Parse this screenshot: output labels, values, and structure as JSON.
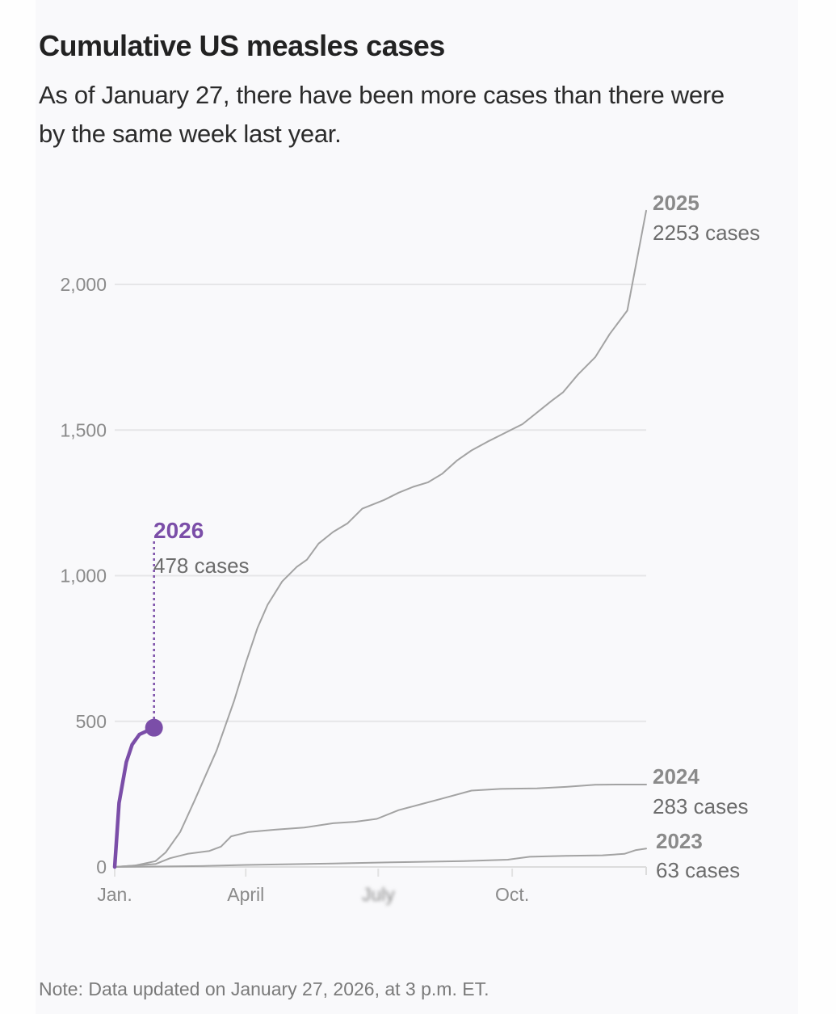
{
  "header": {
    "title": "Cumulative US measles cases",
    "subtitle": "As of January 27, there have been more cases than there were by the same week last year."
  },
  "footer": {
    "note": "Note: Data updated on January 27, 2026, at 3 p.m. ET."
  },
  "colors": {
    "highlight": "#7b4ea8",
    "series_gray": "#a3a3a3",
    "grid": "#e6e6e8",
    "axis": "#a8a8a8"
  },
  "chart_data": {
    "type": "line",
    "title": "Cumulative US measles cases",
    "subtitle": "As of January 27, there have been more cases than there were by the same week last year.",
    "xlabel": "",
    "ylabel": "",
    "ylim": [
      0,
      2253
    ],
    "yticks": [
      0,
      500,
      1000,
      1500,
      2000
    ],
    "ytick_labels": [
      "0",
      "500",
      "1,000",
      "1,500",
      "2,000"
    ],
    "xticks_labels": [
      "Jan.",
      "April",
      "July",
      "Oct."
    ],
    "xticks_dayofyear": [
      0,
      90,
      181,
      273
    ],
    "grid": true,
    "legend": "direct labels at line ends",
    "x_unit": "day of year",
    "series": [
      {
        "name": "2025",
        "label_year": "2025",
        "label_cases": "2253 cases",
        "final_value": 2253,
        "highlight": false,
        "points": [
          [
            0,
            0
          ],
          [
            14,
            5
          ],
          [
            28,
            20
          ],
          [
            35,
            50
          ],
          [
            45,
            120
          ],
          [
            55,
            230
          ],
          [
            70,
            400
          ],
          [
            82,
            570
          ],
          [
            90,
            700
          ],
          [
            98,
            820
          ],
          [
            105,
            900
          ],
          [
            115,
            980
          ],
          [
            125,
            1030
          ],
          [
            132,
            1055
          ],
          [
            140,
            1110
          ],
          [
            150,
            1150
          ],
          [
            160,
            1180
          ],
          [
            170,
            1230
          ],
          [
            185,
            1260
          ],
          [
            195,
            1285
          ],
          [
            205,
            1305
          ],
          [
            215,
            1320
          ],
          [
            225,
            1350
          ],
          [
            235,
            1395
          ],
          [
            245,
            1430
          ],
          [
            256,
            1460
          ],
          [
            268,
            1490
          ],
          [
            280,
            1520
          ],
          [
            290,
            1560
          ],
          [
            300,
            1600
          ],
          [
            308,
            1630
          ],
          [
            318,
            1690
          ],
          [
            330,
            1750
          ],
          [
            340,
            1830
          ],
          [
            352,
            1910
          ],
          [
            365,
            2253
          ]
        ]
      },
      {
        "name": "2024",
        "label_year": "2024",
        "label_cases": "283 cases",
        "final_value": 283,
        "highlight": false,
        "points": [
          [
            0,
            0
          ],
          [
            28,
            10
          ],
          [
            38,
            30
          ],
          [
            50,
            45
          ],
          [
            65,
            55
          ],
          [
            73,
            70
          ],
          [
            80,
            105
          ],
          [
            92,
            120
          ],
          [
            110,
            128
          ],
          [
            130,
            135
          ],
          [
            150,
            150
          ],
          [
            165,
            155
          ],
          [
            180,
            165
          ],
          [
            195,
            195
          ],
          [
            210,
            215
          ],
          [
            225,
            235
          ],
          [
            245,
            262
          ],
          [
            265,
            268
          ],
          [
            290,
            270
          ],
          [
            310,
            275
          ],
          [
            330,
            282
          ],
          [
            345,
            283
          ],
          [
            365,
            283
          ]
        ]
      },
      {
        "name": "2023",
        "label_year": "2023",
        "label_cases": "63 cases",
        "final_value": 63,
        "highlight": false,
        "points": [
          [
            0,
            0
          ],
          [
            60,
            3
          ],
          [
            90,
            7
          ],
          [
            150,
            12
          ],
          [
            190,
            16
          ],
          [
            240,
            20
          ],
          [
            270,
            25
          ],
          [
            285,
            35
          ],
          [
            310,
            38
          ],
          [
            335,
            40
          ],
          [
            350,
            45
          ],
          [
            358,
            58
          ],
          [
            365,
            63
          ]
        ]
      },
      {
        "name": "2026",
        "label_year": "2026",
        "label_cases": "478 cases",
        "final_value": 478,
        "highlight": true,
        "points": [
          [
            0,
            0
          ],
          [
            3,
            220
          ],
          [
            8,
            360
          ],
          [
            12,
            420
          ],
          [
            17,
            455
          ],
          [
            27,
            478
          ]
        ]
      }
    ]
  }
}
